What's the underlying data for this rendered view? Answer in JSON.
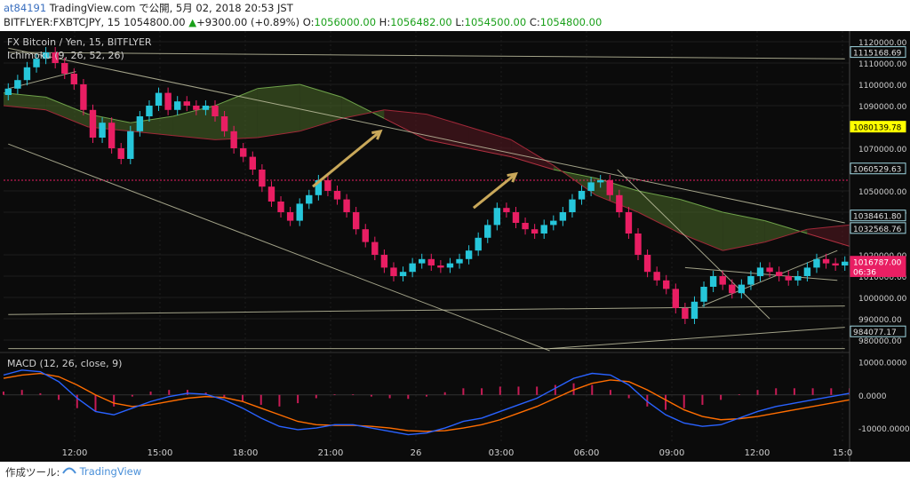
{
  "header": {
    "user": "at84191",
    "published": " TradingView.com で公開, 5月 02, 2018 20:53 JST",
    "symbol": "BITFLYER:FXBTCJPY, 15",
    "last": "1054800.00",
    "change_arrow": "▲",
    "change": "+9300.00 (+0.89%)",
    "o_label": "O:",
    "o": "1056000.00",
    "h_label": "H:",
    "h": "1056482.00",
    "l_label": "L:",
    "l": "1054500.00",
    "c_label": "C:",
    "c": "1054800.00"
  },
  "legend": {
    "title": "FX Bitcoin / Yen, 15, BITFLYER",
    "indicator": "Ichimoku (9, 26, 52, 26)"
  },
  "macd_legend": "MACD (12, 26, close, 9)",
  "footer": {
    "made_with": "作成ツール:",
    "brand": "TradingView"
  },
  "colors": {
    "background": "#0b0b0b",
    "up_candle": "#26c6da",
    "down_candle": "#e91e63",
    "macd_line": "#2962ff",
    "signal_line": "#ff6d00",
    "cloud_bull": "#4d6b2a",
    "cloud_bear": "#5a1a22",
    "trendline": "#c8c8a8",
    "arrow": "#c9a85a",
    "highlight_label": "#ffff00"
  },
  "chart_data": [
    {
      "type": "candlestick",
      "title": "FX Bitcoin / Yen, 15, BITFLYER",
      "ylim": [
        975000,
        1125000
      ],
      "y_ticks": [
        "1120000.00",
        "1110000.00",
        "1100000.00",
        "1090000.00",
        "1070000.00",
        "1050000.00",
        "1040000.00",
        "1020000.00",
        "1010000.00",
        "1000000.00",
        "990000.00",
        "980000.00"
      ],
      "x_ticks": [
        "12:00",
        "15:00",
        "18:00",
        "21:00",
        "26",
        "03:00",
        "06:00",
        "09:00",
        "12:00",
        "15:0"
      ],
      "price_labels": [
        {
          "text": "1115168.69",
          "value": 1115168.69,
          "style": "outline"
        },
        {
          "text": "1080139.78",
          "value": 1080139.78,
          "style": "yellow"
        },
        {
          "text": "1060529.63",
          "value": 1060529.63,
          "style": "outline"
        },
        {
          "text": "1038461.80",
          "value": 1038461.8,
          "style": "outline"
        },
        {
          "text": "1032568.76",
          "value": 1032568.76,
          "style": "outline"
        },
        {
          "text": "1016787.00",
          "value": 1016787.0,
          "style": "current"
        },
        {
          "text": "06:36",
          "value": 1012300,
          "style": "current"
        },
        {
          "text": "984077.17",
          "value": 984077.17,
          "style": "outline"
        }
      ],
      "close": [
        1098000,
        1102000,
        1108000,
        1112000,
        1115000,
        1110000,
        1105000,
        1100000,
        1088000,
        1075000,
        1082000,
        1070000,
        1065000,
        1078000,
        1085000,
        1090000,
        1096000,
        1088000,
        1092000,
        1090000,
        1088000,
        1090000,
        1085000,
        1078000,
        1070000,
        1066000,
        1060000,
        1052000,
        1045000,
        1040000,
        1036000,
        1044000,
        1048000,
        1055000,
        1050000,
        1046000,
        1040000,
        1032000,
        1026000,
        1020000,
        1014000,
        1010000,
        1012000,
        1016000,
        1018000,
        1015000,
        1014000,
        1016000,
        1018000,
        1022000,
        1028000,
        1034000,
        1042000,
        1040000,
        1035000,
        1032000,
        1030000,
        1034000,
        1036000,
        1040000,
        1046000,
        1050000,
        1054000,
        1055000,
        1048000,
        1040000,
        1030000,
        1020000,
        1012000,
        1008000,
        1004000,
        995000,
        990000,
        998000,
        1005000,
        1010000,
        1006000,
        1002000,
        1006000,
        1010000,
        1014000,
        1012000,
        1010000,
        1008000,
        1010000,
        1014000,
        1018000,
        1016000,
        1015000,
        1016787
      ],
      "cloud": [
        {
          "a": 1096000,
          "b": 1090000
        },
        {
          "a": 1094000,
          "b": 1088000
        },
        {
          "a": 1086000,
          "b": 1080000
        },
        {
          "a": 1082000,
          "b": 1078000
        },
        {
          "a": 1085000,
          "b": 1076000
        },
        {
          "a": 1090000,
          "b": 1074000
        },
        {
          "a": 1098000,
          "b": 1075000
        },
        {
          "a": 1100000,
          "b": 1078000
        },
        {
          "a": 1094000,
          "b": 1084000
        },
        {
          "a": 1084000,
          "b": 1088000
        },
        {
          "a": 1074000,
          "b": 1086000
        },
        {
          "a": 1070000,
          "b": 1080000
        },
        {
          "a": 1066000,
          "b": 1074000
        },
        {
          "a": 1060000,
          "b": 1062000
        },
        {
          "a": 1056000,
          "b": 1048000
        },
        {
          "a": 1050000,
          "b": 1040000
        },
        {
          "a": 1046000,
          "b": 1030000
        },
        {
          "a": 1040000,
          "b": 1022000
        },
        {
          "a": 1036000,
          "b": 1026000
        },
        {
          "a": 1030000,
          "b": 1032000
        },
        {
          "a": 1024000,
          "b": 1034000
        }
      ],
      "series": [
        {
          "name": "MACD",
          "type": "line"
        },
        {
          "name": "Signal",
          "type": "line"
        },
        {
          "name": "Histogram",
          "type": "bar"
        }
      ],
      "macd": {
        "y_ticks": [
          "10000.0000",
          "0.0000",
          "-10000.0000"
        ],
        "ylim": [
          -14000,
          12000
        ],
        "macd_line": [
          6000,
          7500,
          7000,
          4000,
          -1000,
          -5000,
          -6000,
          -4000,
          -2000,
          -500,
          500,
          200,
          -1500,
          -4000,
          -7000,
          -9500,
          -10500,
          -10000,
          -9000,
          -9000,
          -10000,
          -11000,
          -12000,
          -11500,
          -10000,
          -8000,
          -7000,
          -5000,
          -3000,
          -1000,
          2000,
          5000,
          6500,
          6000,
          3000,
          -2000,
          -6000,
          -8500,
          -9500,
          -9000,
          -7000,
          -5000,
          -3500,
          -2500,
          -1500,
          -500,
          500
        ],
        "signal_line": [
          5000,
          6000,
          6500,
          5500,
          3000,
          0,
          -2500,
          -3500,
          -3000,
          -2000,
          -1000,
          -500,
          -800,
          -2000,
          -4000,
          -6000,
          -8000,
          -9000,
          -9200,
          -9200,
          -9500,
          -10000,
          -10800,
          -11000,
          -10800,
          -10000,
          -9000,
          -7500,
          -5500,
          -3500,
          -1000,
          1500,
          3500,
          4500,
          4000,
          1500,
          -1500,
          -4500,
          -6500,
          -7500,
          -7200,
          -6500,
          -5500,
          -4500,
          -3500,
          -2500,
          -1500
        ],
        "histogram": [
          1000,
          1500,
          500,
          -1500,
          -4000,
          -5000,
          -3500,
          -500,
          1000,
          1500,
          1500,
          700,
          -700,
          -2000,
          -3000,
          -3500,
          -2500,
          -1000,
          200,
          200,
          -500,
          -1000,
          -1200,
          -500,
          800,
          2000,
          2000,
          2500,
          2500,
          2500,
          3000,
          3500,
          3000,
          1500,
          -1000,
          -3500,
          -4500,
          -4000,
          -3000,
          -1500,
          200,
          1500,
          2000,
          2000,
          2000,
          2000,
          2000
        ]
      }
    }
  ]
}
